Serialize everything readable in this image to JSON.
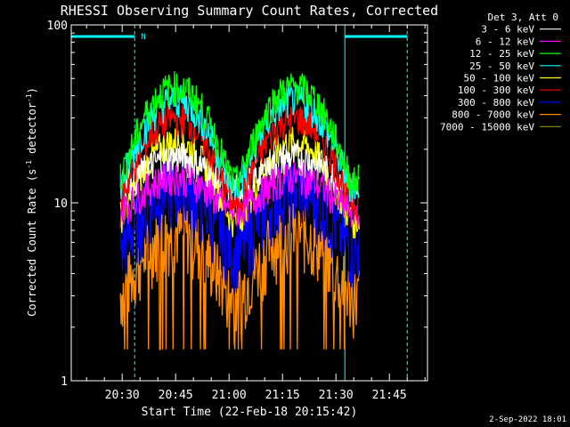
{
  "chart_data": {
    "type": "line",
    "title": "RHESSI Observing Summary Count Rates, Corrected",
    "xlabel": "Start Time (22-Feb-18 20:15:42)",
    "ylabel": "Corrected Count Rate (s",
    "ylabel_sup1": "-1",
    "ylabel_mid": " detector",
    "ylabel_sup2": "-1",
    "ylabel_end": ")",
    "x_ticks": [
      {
        "label": "20:30",
        "minute": 30
      },
      {
        "label": "20:45",
        "minute": 45
      },
      {
        "label": "21:00",
        "minute": 60
      },
      {
        "label": "21:15",
        "minute": 75
      },
      {
        "label": "21:30",
        "minute": 90
      },
      {
        "label": "21:45",
        "minute": 105
      }
    ],
    "xlim_minutes": [
      15.7,
      115.7
    ],
    "y_scale": "log",
    "ylim": [
      1,
      100
    ],
    "y_ticks": [
      {
        "label": "1",
        "value": 1
      },
      {
        "label": "10",
        "value": 10
      },
      {
        "label": "100",
        "value": 100
      }
    ],
    "legend_header": "Det 3, Att 0",
    "legend_position": "top-right",
    "series": [
      {
        "name": "3 - 6 keV",
        "color": "#ffffff",
        "peak": 18,
        "floor": 12
      },
      {
        "name": "6 - 12 keV",
        "color": "#ff00ff",
        "peak": 14,
        "floor": 9
      },
      {
        "name": "12 - 25 keV",
        "color": "#00ff00",
        "peak": 45,
        "floor": 13
      },
      {
        "name": "25 - 50 keV",
        "color": "#00ffff",
        "peak": 38,
        "floor": 12
      },
      {
        "name": "50 - 100 keV",
        "color": "#ffff00",
        "peak": 22,
        "floor": 8
      },
      {
        "name": "100 - 300 keV",
        "color": "#ff0000",
        "peak": 30,
        "floor": 10
      },
      {
        "name": "300 - 800 keV",
        "color": "#0000ff",
        "peak": 12,
        "floor": 5.5
      },
      {
        "name": "800 - 7000 keV",
        "color": "#ff8c00",
        "peak": 7,
        "floor": 3
      },
      {
        "name": "7000 - 15000 keV",
        "color": "#8b8b00",
        "peak": 0,
        "floor": 0
      }
    ],
    "data_span_minutes": [
      29.5,
      96.5
    ],
    "night_bars": [
      {
        "label": "N",
        "start": 15.7,
        "end": 33.5
      },
      {
        "label": "",
        "start": 92.5,
        "end": 110
      }
    ],
    "footer_date": "2-Sep-2022 18:01"
  }
}
